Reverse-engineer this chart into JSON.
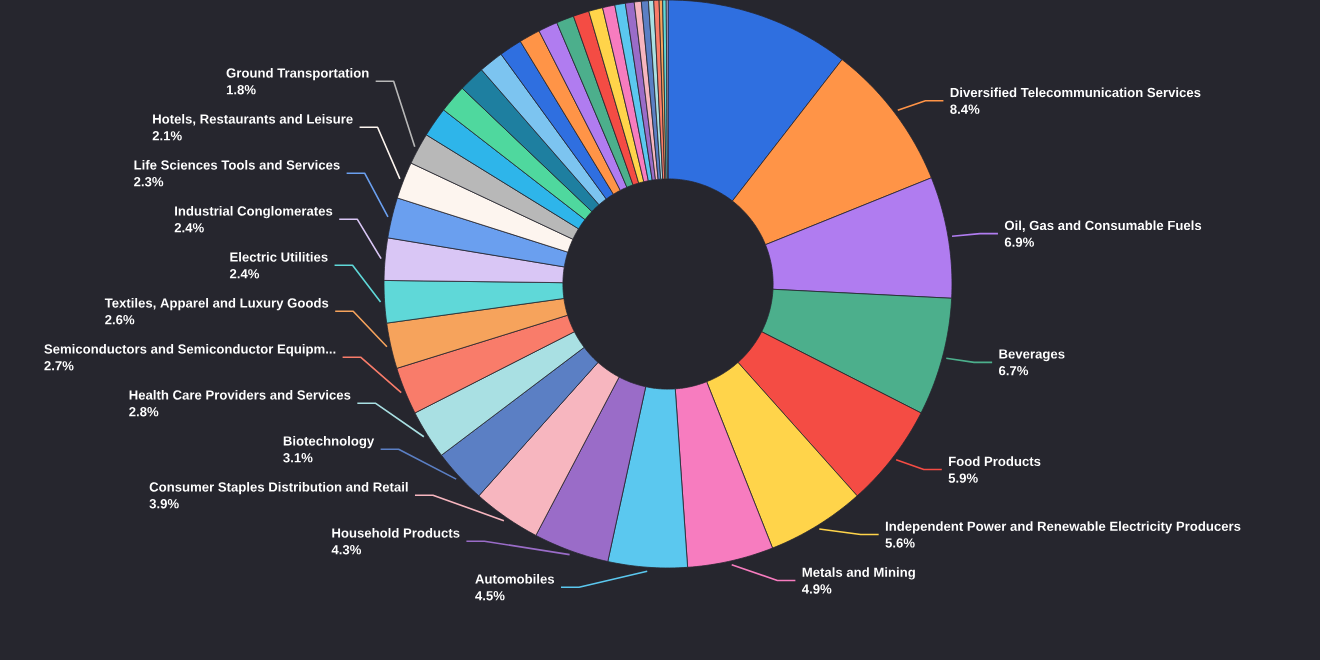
{
  "chart_data": {
    "type": "donut",
    "categories": [
      null,
      "Diversified Telecommunication Services",
      "Oil, Gas and Consumable Fuels",
      "Beverages",
      "Food Products",
      "Independent Power and Renewable Electricity Producers",
      "Metals and Mining",
      "Automobiles",
      "Household Products",
      "Consumer Staples Distribution and Retail",
      "Biotechnology",
      "Health Care Providers and Services",
      "Semiconductors and Semiconductor Equipm...",
      "Textiles, Apparel and Luxury Goods",
      "Electric Utilities",
      "Industrial Conglomerates",
      "Life Sciences Tools and Services",
      "Hotels, Restaurants and Leisure",
      "Ground Transportation",
      null,
      null,
      null,
      null,
      null,
      null,
      null,
      null,
      null,
      null,
      null,
      null,
      null,
      null,
      null,
      null,
      null,
      null,
      null,
      null
    ],
    "values": [
      10.5,
      8.4,
      6.9,
      6.7,
      5.9,
      5.6,
      4.9,
      4.5,
      4.3,
      3.9,
      3.1,
      2.8,
      2.7,
      2.6,
      2.4,
      2.4,
      2.3,
      2.1,
      1.8,
      1.7,
      1.6,
      1.5,
      1.4,
      1.3,
      1.2,
      1.1,
      1.0,
      0.9,
      0.8,
      0.7,
      0.6,
      0.5,
      0.4,
      0.4,
      0.3,
      0.3,
      0.2,
      0.2,
      0.1
    ],
    "value_labels": [
      null,
      "8.4%",
      "6.9%",
      "6.7%",
      "5.9%",
      "5.6%",
      "4.9%",
      "4.5%",
      "4.3%",
      "3.9%",
      "3.1%",
      "2.8%",
      "2.7%",
      "2.6%",
      "2.4%",
      "2.4%",
      "2.3%",
      "2.1%",
      "1.8%",
      null,
      null,
      null,
      null,
      null,
      null,
      null,
      null,
      null,
      null,
      null,
      null,
      null,
      null,
      null,
      null,
      null,
      null,
      null,
      null
    ],
    "colors": [
      "#2f6fe0",
      "#ff9447",
      "#b07cf0",
      "#4caf8c",
      "#f44c44",
      "#ffd44a",
      "#f77cbf",
      "#5bc8ef",
      "#9a6cc8",
      "#f7b6bf",
      "#5b7fc4",
      "#a9e0e3",
      "#f97c6a",
      "#f6a35c",
      "#5fd8d8",
      "#d9c6f5",
      "#6a9fef",
      "#fdf5ef",
      "#b8b8b8",
      "#2eb5ea",
      "#4fd89e",
      "#1e7fa0",
      "#7cc4f0",
      "#2f6fe0",
      "#ff9447",
      "#b07cf0",
      "#4caf8c",
      "#f44c44",
      "#ffd44a",
      "#f77cbf",
      "#5bc8ef",
      "#9a6cc8",
      "#f7b6bf",
      "#5b7fc4",
      "#a9e0e3",
      "#f97c6a",
      "#f6a35c",
      "#5fd8d8",
      "#d9c6f5"
    ]
  }
}
